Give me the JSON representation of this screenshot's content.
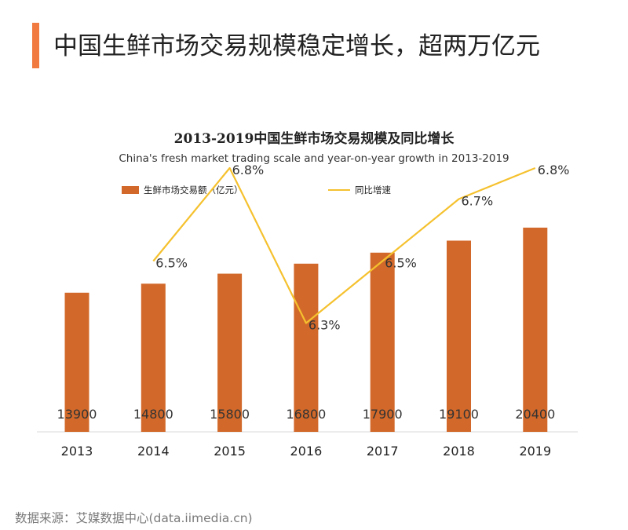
{
  "header": {
    "title": "中国生鲜市场交易规模稳定增长，超两万亿元"
  },
  "colors": {
    "accent": "#f07a3f",
    "bar": "#d2692a",
    "line": "#f5c12e",
    "axis": "#d9d9d9"
  },
  "chart_data": {
    "type": "bar",
    "title": "2013-2019中国生鲜市场交易规模及同比增长",
    "subtitle": "China's fresh market trading scale and year-on-year growth in 2013-2019",
    "categories": [
      "2013",
      "2014",
      "2015",
      "2016",
      "2017",
      "2018",
      "2019"
    ],
    "series": [
      {
        "name": "生鲜市场交易额（亿元）",
        "type": "bar",
        "values": [
          13900,
          14800,
          15800,
          16800,
          17900,
          19100,
          20400
        ],
        "labels": [
          "13900",
          "14800",
          "15800",
          "16800",
          "17900",
          "19100",
          "20400"
        ]
      },
      {
        "name": "同比增速",
        "type": "line",
        "x": [
          "2014",
          "2015",
          "2016",
          "2017",
          "2018",
          "2019"
        ],
        "values": [
          6.5,
          6.8,
          6.3,
          6.5,
          6.7,
          6.8
        ],
        "labels": [
          "6.5%",
          "6.8%",
          "6.3%",
          "6.5%",
          "6.7%",
          "6.8%"
        ]
      }
    ],
    "legend_position": "top",
    "grid": false
  },
  "footer": {
    "source": "数据来源：艾媒数据中心(data.iimedia.cn)"
  }
}
